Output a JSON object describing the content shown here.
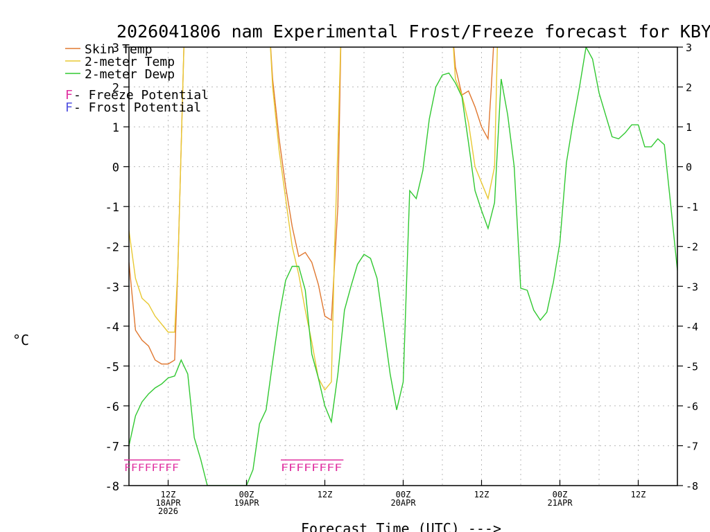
{
  "chart_data": {
    "type": "line",
    "title": "2026041806 nam Experimental Frost/Freeze forecast for KBYI",
    "xlabel": "Forecast Time (UTC) --->",
    "ylabel": "°C",
    "ylim": [
      -8,
      3
    ],
    "x_hours_range": [
      0,
      84
    ],
    "yticks": [
      "-8",
      "-7",
      "-6",
      "-5",
      "-4",
      "-3",
      "-2",
      "-1",
      "0",
      "1",
      "2",
      "3"
    ],
    "x_ticks": [
      {
        "hour": 6,
        "lines": [
          "12Z",
          "18APR",
          "2026"
        ]
      },
      {
        "hour": 18,
        "lines": [
          "00Z",
          "19APR"
        ]
      },
      {
        "hour": 30,
        "lines": [
          "12Z"
        ]
      },
      {
        "hour": 42,
        "lines": [
          "00Z",
          "20APR"
        ]
      },
      {
        "hour": 54,
        "lines": [
          "12Z"
        ]
      },
      {
        "hour": 66,
        "lines": [
          "00Z",
          "21APR"
        ]
      },
      {
        "hour": 78,
        "lines": [
          "12Z"
        ]
      }
    ],
    "series": [
      {
        "name": "Skin Temp",
        "color": "#e07830",
        "points": [
          [
            0,
            -2.4
          ],
          [
            1,
            -4.1
          ],
          [
            2,
            -4.35
          ],
          [
            3,
            -4.5
          ],
          [
            4,
            -4.85
          ],
          [
            5,
            -4.95
          ],
          [
            6,
            -4.95
          ],
          [
            7,
            -4.85
          ],
          [
            7.5,
            -2.5
          ],
          [
            8,
            0.5
          ],
          [
            8.5,
            3.5
          ],
          [
            21.5,
            3.5
          ],
          [
            22,
            2.2
          ],
          [
            23,
            0.7
          ],
          [
            24,
            -0.5
          ],
          [
            25,
            -1.5
          ],
          [
            26,
            -2.25
          ],
          [
            27,
            -2.15
          ],
          [
            28,
            -2.4
          ],
          [
            29,
            -2.95
          ],
          [
            30,
            -3.75
          ],
          [
            31,
            -3.85
          ],
          [
            32,
            -1
          ],
          [
            32.5,
            3.5
          ],
          [
            49.5,
            3.5
          ],
          [
            50,
            2.5
          ],
          [
            51,
            1.8
          ],
          [
            52,
            1.9
          ],
          [
            53,
            1.5
          ],
          [
            54,
            1.0
          ],
          [
            55,
            0.7
          ],
          [
            55.5,
            2.0
          ],
          [
            56,
            3.5
          ]
        ]
      },
      {
        "name": "2-meter Temp",
        "color": "#e8c832",
        "points": [
          [
            0,
            -1.6
          ],
          [
            1,
            -2.8
          ],
          [
            2,
            -3.3
          ],
          [
            3,
            -3.45
          ],
          [
            4,
            -3.75
          ],
          [
            5,
            -3.95
          ],
          [
            6,
            -4.15
          ],
          [
            7,
            -4.15
          ],
          [
            7.5,
            -2.5
          ],
          [
            8,
            0.5
          ],
          [
            8.5,
            3.5
          ],
          [
            21.5,
            3.5
          ],
          [
            22,
            2.0
          ],
          [
            23,
            0.4
          ],
          [
            24,
            -0.8
          ],
          [
            25,
            -2.0
          ],
          [
            26,
            -2.7
          ],
          [
            27,
            -3.6
          ],
          [
            28,
            -4.4
          ],
          [
            29,
            -5.3
          ],
          [
            30,
            -5.6
          ],
          [
            31,
            -5.4
          ],
          [
            31.5,
            -2
          ],
          [
            32,
            0.5
          ],
          [
            32.5,
            3.5
          ],
          [
            49.5,
            3.5
          ],
          [
            50,
            2.2
          ],
          [
            51,
            1.8
          ],
          [
            52,
            1.1
          ],
          [
            53,
            0.0
          ],
          [
            54,
            -0.4
          ],
          [
            55,
            -0.8
          ],
          [
            56,
            0.0
          ],
          [
            56.5,
            3.5
          ]
        ]
      },
      {
        "name": "2-meter Dewp",
        "color": "#30c830",
        "points": [
          [
            0,
            -7.0
          ],
          [
            1,
            -6.25
          ],
          [
            2,
            -5.9
          ],
          [
            3,
            -5.7
          ],
          [
            4,
            -5.55
          ],
          [
            5,
            -5.45
          ],
          [
            6,
            -5.3
          ],
          [
            7,
            -5.25
          ],
          [
            8,
            -4.85
          ],
          [
            9,
            -5.2
          ],
          [
            10,
            -6.8
          ],
          [
            11,
            -7.35
          ],
          [
            12,
            -8
          ],
          [
            18,
            -8
          ],
          [
            19,
            -7.6
          ],
          [
            20,
            -6.45
          ],
          [
            21,
            -6.1
          ],
          [
            22,
            -4.9
          ],
          [
            23,
            -3.75
          ],
          [
            24,
            -2.85
          ],
          [
            25,
            -2.5
          ],
          [
            26,
            -2.5
          ],
          [
            27,
            -3.1
          ],
          [
            28,
            -4.7
          ],
          [
            29,
            -5.3
          ],
          [
            30,
            -6.0
          ],
          [
            31,
            -6.4
          ],
          [
            32,
            -5.2
          ],
          [
            33,
            -3.6
          ],
          [
            34,
            -3.0
          ],
          [
            35,
            -2.45
          ],
          [
            36,
            -2.2
          ],
          [
            37,
            -2.3
          ],
          [
            38,
            -2.8
          ],
          [
            39,
            -4.0
          ],
          [
            40,
            -5.2
          ],
          [
            41,
            -6.1
          ],
          [
            42,
            -5.4
          ],
          [
            43,
            -0.6
          ],
          [
            44,
            -0.8
          ],
          [
            45,
            -0.1
          ],
          [
            46,
            1.2
          ],
          [
            47,
            2.0
          ],
          [
            48,
            2.3
          ],
          [
            49,
            2.35
          ],
          [
            50,
            2.1
          ],
          [
            51,
            1.75
          ],
          [
            52,
            0.6
          ],
          [
            53,
            -0.6
          ],
          [
            54,
            -1.1
          ],
          [
            55,
            -1.55
          ],
          [
            56,
            -0.9
          ],
          [
            57,
            2.2
          ],
          [
            58,
            1.3
          ],
          [
            59,
            0.0
          ],
          [
            60,
            -3.05
          ],
          [
            61,
            -3.1
          ],
          [
            62,
            -3.6
          ],
          [
            63,
            -3.85
          ],
          [
            64,
            -3.65
          ],
          [
            65,
            -2.9
          ],
          [
            66,
            -1.9
          ],
          [
            67,
            0.1
          ],
          [
            68,
            1.1
          ],
          [
            69,
            2.0
          ],
          [
            70,
            3.0
          ],
          [
            71,
            2.7
          ],
          [
            72,
            1.85
          ],
          [
            73,
            1.3
          ],
          [
            74,
            0.75
          ],
          [
            75,
            0.7
          ],
          [
            76,
            0.85
          ],
          [
            77,
            1.05
          ],
          [
            78,
            1.05
          ],
          [
            79,
            0.5
          ],
          [
            80,
            0.5
          ],
          [
            81,
            0.7
          ],
          [
            82,
            0.55
          ],
          [
            83,
            -1.0
          ],
          [
            84,
            -2.6
          ]
        ]
      }
    ],
    "legend": {
      "items": [
        "Skin Temp",
        "2-meter Temp",
        "2-meter Dewp"
      ],
      "freeze": {
        "marker": "F",
        "text": " - Freeze Potential",
        "color": "#e030a0"
      },
      "frost": {
        "marker": "F",
        "text": " - Frost Potential",
        "color": "#5050e0"
      }
    },
    "freeze_markers": [
      {
        "start_hour": 0,
        "end_hour": 7,
        "label": "FFFFFFFF",
        "color": "#e030a0"
      },
      {
        "start_hour": 24,
        "end_hour": 32,
        "label": "FFFFFFFF",
        "color": "#e030a0"
      }
    ],
    "grid": true
  }
}
